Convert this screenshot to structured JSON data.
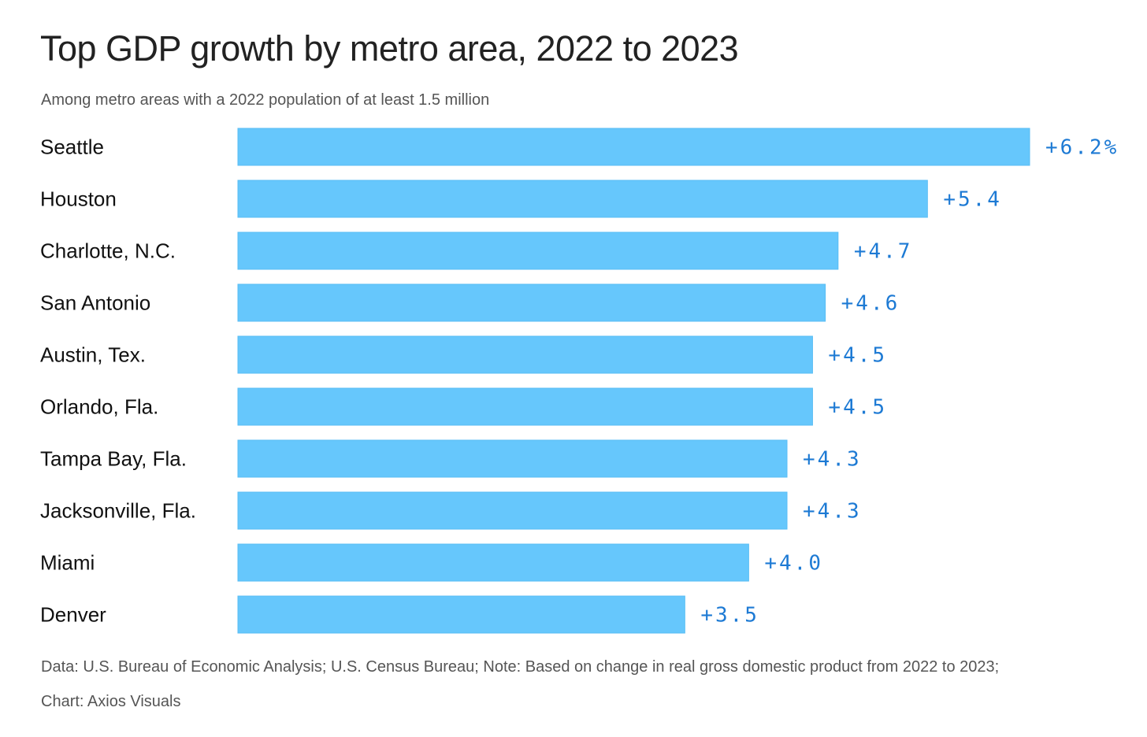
{
  "chart_data": {
    "type": "bar",
    "orientation": "horizontal",
    "title": "Top GDP growth by metro area, 2022 to 2023",
    "subtitle": "Among metro areas with a 2022 population of at least 1.5 million",
    "categories": [
      "Seattle",
      "Houston",
      "Charlotte, N.C.",
      "San Antonio",
      "Austin, Tex.",
      "Orlando, Fla.",
      "Tampa Bay, Fla.",
      "Jacksonville, Fla.",
      "Miami",
      "Denver"
    ],
    "values": [
      6.2,
      5.4,
      4.7,
      4.6,
      4.5,
      4.5,
      4.3,
      4.3,
      4.0,
      3.5
    ],
    "value_labels": [
      "+6.2%",
      "+5.4",
      "+4.7",
      "+4.6",
      "+4.5",
      "+4.5",
      "+4.3",
      "+4.3",
      "+4.0",
      "+3.5"
    ],
    "xlim": [
      0,
      6.2
    ],
    "grid": false,
    "bar_color": "#66c7fc",
    "label_color": "#1d7ad4"
  },
  "footnotes": {
    "source": "Data: U.S. Bureau of Economic Analysis; U.S. Census Bureau; Note: Based on change in real gross domestic product from 2022 to 2023;",
    "credit": "Chart: Axios Visuals"
  }
}
